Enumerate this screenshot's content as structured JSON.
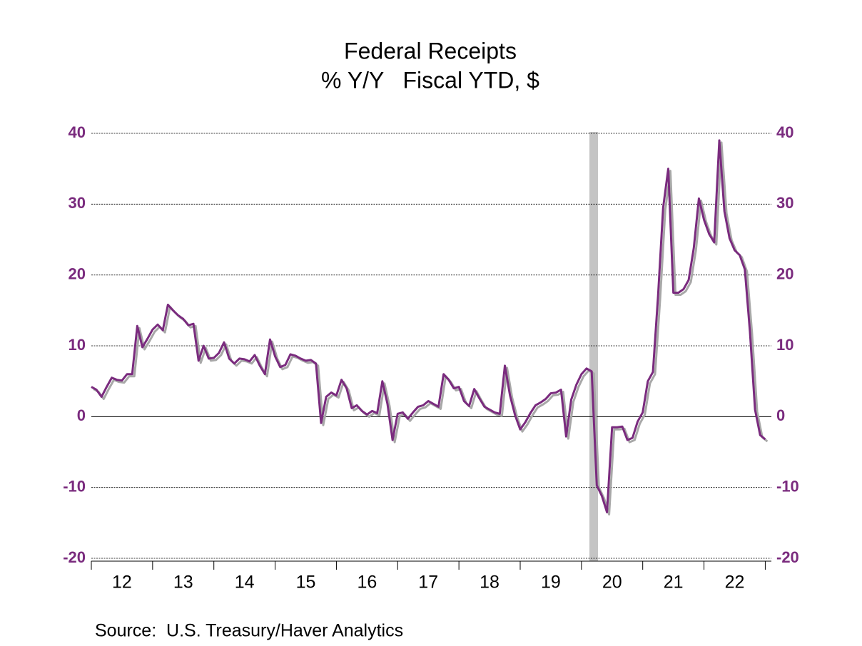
{
  "chart_data": {
    "type": "line",
    "title": "Federal Receipts",
    "subtitle": "% Y/Y   Fiscal YTD, $",
    "source": "Source:  U.S. Treasury/Haver Analytics",
    "xlim": [
      12,
      23.1
    ],
    "xticks": [
      {
        "value": 12,
        "label": "12"
      },
      {
        "value": 13,
        "label": "13"
      },
      {
        "value": 14,
        "label": "14"
      },
      {
        "value": 15,
        "label": "15"
      },
      {
        "value": 16,
        "label": "16"
      },
      {
        "value": 17,
        "label": "17"
      },
      {
        "value": 18,
        "label": "18"
      },
      {
        "value": 19,
        "label": "19"
      },
      {
        "value": 20,
        "label": "20"
      },
      {
        "value": 21,
        "label": "21"
      },
      {
        "value": 22,
        "label": "22"
      }
    ],
    "ylim": [
      -20.4,
      40.2
    ],
    "yticks": [
      -20,
      -10,
      0,
      10,
      20,
      30,
      40
    ],
    "grid": true,
    "recession": [
      20.13,
      20.27
    ],
    "x": [
      12,
      12.0833,
      12.1667,
      12.25,
      12.3333,
      12.4167,
      12.5,
      12.5833,
      12.6667,
      12.75,
      12.8333,
      12.9167,
      13,
      13.0833,
      13.1667,
      13.25,
      13.3333,
      13.4167,
      13.5,
      13.5833,
      13.6667,
      13.75,
      13.8333,
      13.9167,
      14,
      14.0833,
      14.1667,
      14.25,
      14.3333,
      14.4167,
      14.5,
      14.5833,
      14.6667,
      14.75,
      14.8333,
      14.9167,
      15,
      15.0833,
      15.1667,
      15.25,
      15.3333,
      15.4167,
      15.5,
      15.5833,
      15.6667,
      15.75,
      15.8333,
      15.9167,
      16,
      16.0833,
      16.1667,
      16.25,
      16.3333,
      16.4167,
      16.5,
      16.5833,
      16.6667,
      16.75,
      16.8333,
      16.9167,
      17,
      17.0833,
      17.1667,
      17.25,
      17.3333,
      17.4167,
      17.5,
      17.5833,
      17.6667,
      17.75,
      17.8333,
      17.9167,
      18,
      18.0833,
      18.1667,
      18.25,
      18.3333,
      18.4167,
      18.5,
      18.5833,
      18.6667,
      18.75,
      18.8333,
      18.9167,
      19,
      19.0833,
      19.1667,
      19.25,
      19.3333,
      19.4167,
      19.5,
      19.5833,
      19.6667,
      19.75,
      19.8333,
      19.9167,
      20,
      20.0833,
      20.1667,
      20.25,
      20.3333,
      20.4167,
      20.5,
      20.5833,
      20.6667,
      20.75,
      20.8333,
      20.9167,
      21,
      21.0833,
      21.1667,
      21.25,
      21.3333,
      21.4167,
      21.5,
      21.5833,
      21.6667,
      21.75,
      21.8333,
      21.9167,
      22,
      22.0833,
      22.1667,
      22.25,
      22.3333,
      22.4167,
      22.5,
      22.5833,
      22.6667,
      22.75,
      22.8333,
      22.9167,
      23
    ],
    "series": [
      {
        "color": "#7a2b7e",
        "values": [
          4.2,
          3.8,
          2.8,
          4.2,
          5.5,
          5.2,
          5.1,
          6.0,
          6.0,
          12.8,
          9.8,
          11.0,
          12.3,
          13.0,
          12.2,
          15.8,
          15.0,
          14.3,
          13.8,
          12.9,
          13.1,
          7.9,
          10.0,
          8.2,
          8.3,
          9.0,
          10.5,
          8.2,
          7.5,
          8.2,
          8.1,
          7.8,
          8.7,
          7.2,
          6.0,
          10.9,
          8.5,
          7.0,
          7.3,
          8.8,
          8.6,
          8.2,
          7.9,
          8.0,
          7.5,
          -0.9,
          2.8,
          3.4,
          3.0,
          5.2,
          4.0,
          1.2,
          1.6,
          0.8,
          0.3,
          0.8,
          0.5,
          5.0,
          1.8,
          -3.3,
          0.4,
          0.6,
          -0.3,
          0.6,
          1.4,
          1.6,
          2.2,
          1.8,
          1.4,
          6.0,
          5.2,
          4.0,
          4.2,
          2.2,
          1.5,
          3.9,
          2.6,
          1.4,
          1.0,
          0.6,
          0.4,
          7.2,
          3.0,
          0.2,
          -1.8,
          -0.8,
          0.5,
          1.6,
          2.0,
          2.5,
          3.3,
          3.4,
          3.8,
          -2.8,
          2.4,
          4.5,
          6.0,
          6.8,
          6.4,
          -9.7,
          -11.2,
          -13.5,
          -1.5,
          -1.5,
          -1.4,
          -3.3,
          -3.0,
          -0.7,
          0.6,
          5.0,
          6.3,
          17.0,
          29.5,
          35.0,
          17.5,
          17.5,
          18.0,
          19.3,
          23.8,
          30.8,
          27.8,
          25.8,
          24.6,
          39.0,
          29.0,
          25.2,
          23.5,
          22.8,
          20.8,
          12.0,
          1.0,
          -2.6,
          -3.2
        ]
      }
    ]
  }
}
